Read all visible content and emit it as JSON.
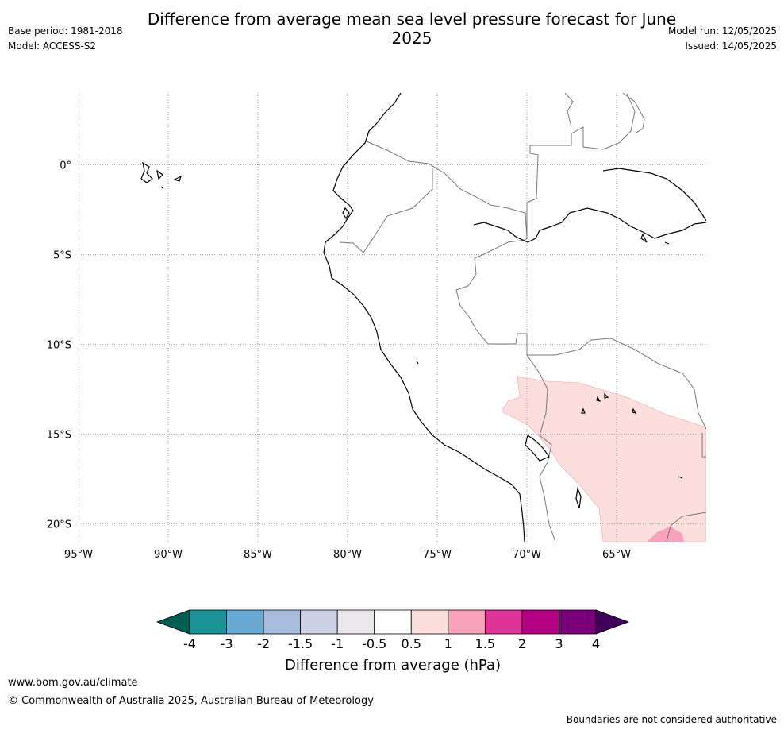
{
  "header": {
    "title": "Difference from average mean sea level pressure forecast for June 2025",
    "base_period": "Base period: 1981-2018",
    "model": "Model: ACCESS-S2",
    "model_run": "Model run: 12/05/2025",
    "issued": "Issued: 14/05/2025"
  },
  "map": {
    "lat_labels": [
      "0°",
      "5°S",
      "10°S",
      "15°S",
      "20°S"
    ],
    "lon_labels": [
      "95°W",
      "90°W",
      "85°W",
      "80°W",
      "75°W",
      "70°W",
      "65°W"
    ],
    "lat_values": [
      0,
      -5,
      -10,
      -15,
      -20
    ],
    "lon_values": [
      -95,
      -90,
      -85,
      -80,
      -75,
      -70,
      -65
    ],
    "lon_range": [
      -95,
      -60
    ],
    "lat_range": [
      -21,
      4
    ],
    "anomaly_regions": [
      {
        "category": "0.5 to 1",
        "color": "#fcdedd",
        "location": "southern Peru / Bolivia"
      },
      {
        "category": "1 to 1.5",
        "color": "#f8a2bc",
        "location": "southeast corner"
      }
    ]
  },
  "colorbar": {
    "ticks": [
      "-4",
      "-3",
      "-2",
      "-1.5",
      "-1",
      "-0.5",
      "0.5",
      "1",
      "1.5",
      "2",
      "3",
      "4"
    ],
    "colors": [
      "#005f52",
      "#1a9296",
      "#6aa9d2",
      "#a7bbdd",
      "#cfd1e6",
      "#e9e7ea",
      "#ffffff",
      "#fcdedd",
      "#f8a2bc",
      "#dc3597",
      "#b10080",
      "#7a007a",
      "#40005a"
    ],
    "label": "Difference from average (hPa)"
  },
  "footer": {
    "url": "www.bom.gov.au/climate",
    "copyright": "© Commonwealth of Australia 2025, Australian Bureau of Meteorology",
    "disclaimer": "Boundaries are not considered authoritative"
  }
}
